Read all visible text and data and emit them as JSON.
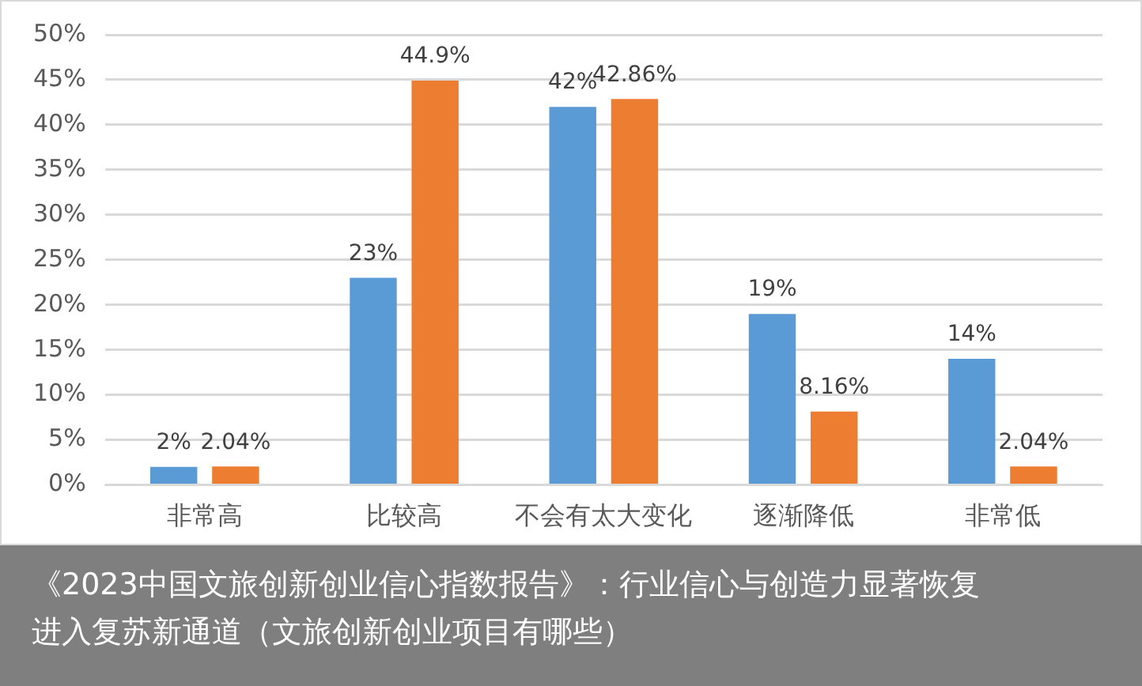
{
  "chart_data": {
    "type": "bar",
    "categories": [
      "非常高",
      "比较高",
      "不会有太大变化",
      "逐渐降低",
      "非常低"
    ],
    "series": [
      {
        "color": "#5b9bd5",
        "values": [
          2,
          23,
          42,
          19,
          14
        ],
        "value_labels": [
          "2%",
          "23%",
          "42%",
          "19%",
          "14%"
        ]
      },
      {
        "color": "#ed7d31",
        "values": [
          2.04,
          44.9,
          42.86,
          8.16,
          2.04
        ],
        "value_labels": [
          "2.04%",
          "44.9%",
          "42.86%",
          "8.16%",
          "2.04%"
        ]
      }
    ],
    "ylim": [
      0,
      50
    ],
    "yticks": [
      {
        "value": 0,
        "label": "0%"
      },
      {
        "value": 5,
        "label": "5%"
      },
      {
        "value": 10,
        "label": "10%"
      },
      {
        "value": 15,
        "label": "15%"
      },
      {
        "value": 20,
        "label": "20%"
      },
      {
        "value": 25,
        "label": "25%"
      },
      {
        "value": 30,
        "label": "30%"
      },
      {
        "value": 35,
        "label": "35%"
      },
      {
        "value": 40,
        "label": "40%"
      },
      {
        "value": 45,
        "label": "45%"
      },
      {
        "value": 50,
        "label": "50%"
      }
    ],
    "grid": "y",
    "legend": false,
    "annotations": [
      "《2023中国文旅创新创业信心指数报告》：行业信心与创造力显著恢复进入复苏新通道（文旅创新创业项目有哪些）"
    ]
  }
}
